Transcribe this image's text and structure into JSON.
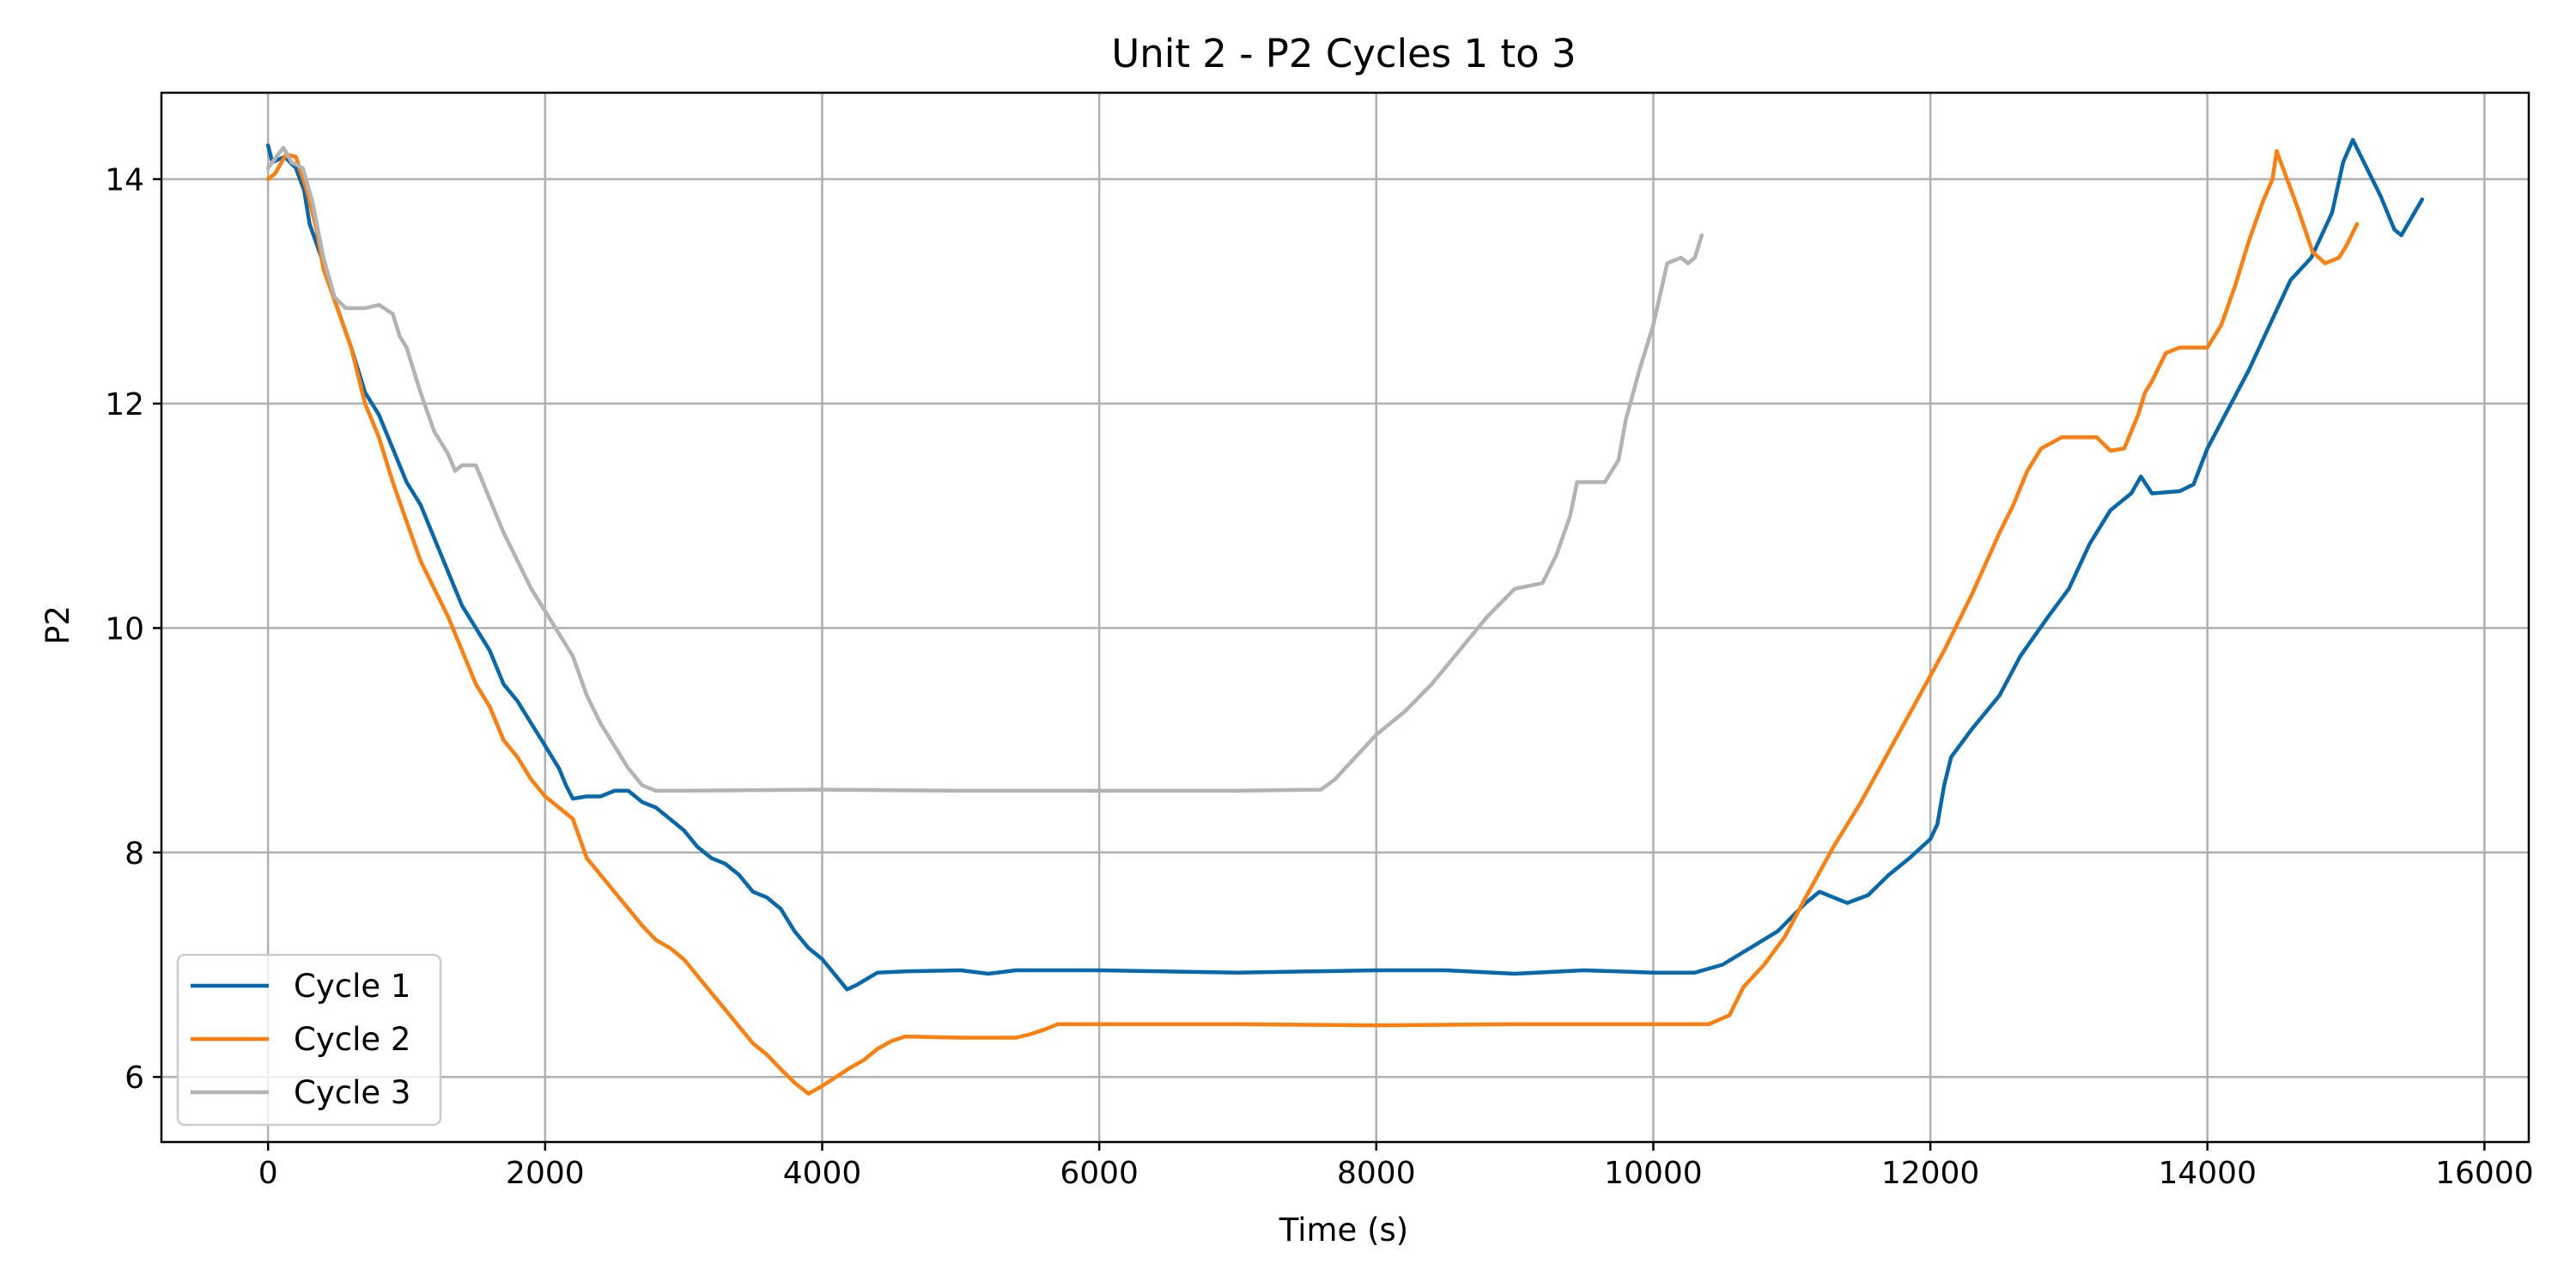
{
  "chart_data": {
    "type": "line",
    "title": "Unit 2 - P2 Cycles 1 to 3",
    "xlabel": "Time (s)",
    "ylabel": "P2",
    "xlim": [
      -770,
      16320
    ],
    "ylim": [
      5.42,
      14.77
    ],
    "xticks": [
      0,
      2000,
      4000,
      6000,
      8000,
      10000,
      12000,
      14000,
      16000
    ],
    "yticks": [
      6,
      8,
      10,
      12,
      14
    ],
    "grid": true,
    "legend_position": "lower-left",
    "series": [
      {
        "name": "Cycle 1",
        "color": "#0868ac",
        "points": [
          [
            0,
            14.3
          ],
          [
            30,
            14.15
          ],
          [
            120,
            14.2
          ],
          [
            200,
            14.1
          ],
          [
            260,
            13.9
          ],
          [
            300,
            13.6
          ],
          [
            400,
            13.25
          ],
          [
            500,
            12.85
          ],
          [
            600,
            12.5
          ],
          [
            700,
            12.1
          ],
          [
            800,
            11.9
          ],
          [
            900,
            11.6
          ],
          [
            1000,
            11.3
          ],
          [
            1100,
            11.1
          ],
          [
            1200,
            10.8
          ],
          [
            1300,
            10.5
          ],
          [
            1400,
            10.2
          ],
          [
            1500,
            10.0
          ],
          [
            1600,
            9.8
          ],
          [
            1700,
            9.5
          ],
          [
            1800,
            9.35
          ],
          [
            1900,
            9.15
          ],
          [
            2000,
            8.95
          ],
          [
            2100,
            8.75
          ],
          [
            2150,
            8.6
          ],
          [
            2200,
            8.48
          ],
          [
            2300,
            8.5
          ],
          [
            2400,
            8.5
          ],
          [
            2500,
            8.55
          ],
          [
            2600,
            8.55
          ],
          [
            2700,
            8.45
          ],
          [
            2800,
            8.4
          ],
          [
            2900,
            8.3
          ],
          [
            3000,
            8.2
          ],
          [
            3100,
            8.05
          ],
          [
            3200,
            7.95
          ],
          [
            3300,
            7.9
          ],
          [
            3400,
            7.8
          ],
          [
            3500,
            7.65
          ],
          [
            3600,
            7.6
          ],
          [
            3700,
            7.5
          ],
          [
            3800,
            7.3
          ],
          [
            3900,
            7.15
          ],
          [
            4000,
            7.05
          ],
          [
            4100,
            6.9
          ],
          [
            4180,
            6.78
          ],
          [
            4250,
            6.82
          ],
          [
            4400,
            6.93
          ],
          [
            4600,
            6.94
          ],
          [
            5000,
            6.95
          ],
          [
            5200,
            6.92
          ],
          [
            5400,
            6.95
          ],
          [
            6000,
            6.95
          ],
          [
            7000,
            6.93
          ],
          [
            8000,
            6.95
          ],
          [
            8500,
            6.95
          ],
          [
            9000,
            6.92
          ],
          [
            9500,
            6.95
          ],
          [
            10000,
            6.93
          ],
          [
            10300,
            6.93
          ],
          [
            10500,
            7.0
          ],
          [
            10700,
            7.15
          ],
          [
            10900,
            7.3
          ],
          [
            11100,
            7.55
          ],
          [
            11200,
            7.65
          ],
          [
            11300,
            7.6
          ],
          [
            11400,
            7.55
          ],
          [
            11550,
            7.62
          ],
          [
            11700,
            7.8
          ],
          [
            11850,
            7.95
          ],
          [
            12000,
            8.12
          ],
          [
            12050,
            8.25
          ],
          [
            12100,
            8.6
          ],
          [
            12150,
            8.85
          ],
          [
            12300,
            9.1
          ],
          [
            12500,
            9.4
          ],
          [
            12650,
            9.75
          ],
          [
            12850,
            10.1
          ],
          [
            13000,
            10.35
          ],
          [
            13150,
            10.75
          ],
          [
            13300,
            11.05
          ],
          [
            13450,
            11.2
          ],
          [
            13520,
            11.35
          ],
          [
            13600,
            11.2
          ],
          [
            13800,
            11.22
          ],
          [
            13900,
            11.28
          ],
          [
            14000,
            11.6
          ],
          [
            14150,
            11.95
          ],
          [
            14300,
            12.3
          ],
          [
            14450,
            12.7
          ],
          [
            14600,
            13.1
          ],
          [
            14750,
            13.3
          ],
          [
            14900,
            13.7
          ],
          [
            14980,
            14.15
          ],
          [
            15050,
            14.35
          ],
          [
            15150,
            14.1
          ],
          [
            15250,
            13.85
          ],
          [
            15350,
            13.55
          ],
          [
            15400,
            13.5
          ],
          [
            15550,
            13.82
          ]
        ]
      },
      {
        "name": "Cycle 2",
        "color": "#ff7f0e",
        "points": [
          [
            0,
            14.0
          ],
          [
            50,
            14.05
          ],
          [
            130,
            14.22
          ],
          [
            200,
            14.2
          ],
          [
            280,
            13.9
          ],
          [
            350,
            13.55
          ],
          [
            400,
            13.2
          ],
          [
            500,
            12.85
          ],
          [
            600,
            12.5
          ],
          [
            700,
            12.0
          ],
          [
            800,
            11.7
          ],
          [
            900,
            11.3
          ],
          [
            1000,
            10.95
          ],
          [
            1100,
            10.6
          ],
          [
            1200,
            10.35
          ],
          [
            1300,
            10.1
          ],
          [
            1400,
            9.8
          ],
          [
            1500,
            9.5
          ],
          [
            1600,
            9.3
          ],
          [
            1700,
            9.0
          ],
          [
            1800,
            8.85
          ],
          [
            1900,
            8.65
          ],
          [
            2000,
            8.5
          ],
          [
            2100,
            8.4
          ],
          [
            2200,
            8.3
          ],
          [
            2300,
            7.95
          ],
          [
            2400,
            7.8
          ],
          [
            2500,
            7.65
          ],
          [
            2600,
            7.5
          ],
          [
            2700,
            7.35
          ],
          [
            2800,
            7.22
          ],
          [
            2900,
            7.15
          ],
          [
            3000,
            7.05
          ],
          [
            3100,
            6.9
          ],
          [
            3200,
            6.75
          ],
          [
            3300,
            6.6
          ],
          [
            3400,
            6.45
          ],
          [
            3500,
            6.3
          ],
          [
            3600,
            6.2
          ],
          [
            3700,
            6.07
          ],
          [
            3800,
            5.95
          ],
          [
            3900,
            5.85
          ],
          [
            4000,
            5.92
          ],
          [
            4100,
            6.0
          ],
          [
            4200,
            6.08
          ],
          [
            4300,
            6.15
          ],
          [
            4400,
            6.25
          ],
          [
            4500,
            6.32
          ],
          [
            4600,
            6.36
          ],
          [
            5000,
            6.35
          ],
          [
            5400,
            6.35
          ],
          [
            5500,
            6.38
          ],
          [
            5600,
            6.42
          ],
          [
            5700,
            6.47
          ],
          [
            6000,
            6.47
          ],
          [
            7000,
            6.47
          ],
          [
            8000,
            6.46
          ],
          [
            9000,
            6.47
          ],
          [
            10000,
            6.47
          ],
          [
            10400,
            6.47
          ],
          [
            10550,
            6.55
          ],
          [
            10650,
            6.8
          ],
          [
            10800,
            7.0
          ],
          [
            10950,
            7.25
          ],
          [
            11100,
            7.6
          ],
          [
            11300,
            8.05
          ],
          [
            11500,
            8.45
          ],
          [
            11700,
            8.9
          ],
          [
            11900,
            9.35
          ],
          [
            12100,
            9.8
          ],
          [
            12300,
            10.3
          ],
          [
            12500,
            10.85
          ],
          [
            12600,
            11.1
          ],
          [
            12700,
            11.4
          ],
          [
            12800,
            11.6
          ],
          [
            12950,
            11.7
          ],
          [
            13200,
            11.7
          ],
          [
            13300,
            11.58
          ],
          [
            13400,
            11.6
          ],
          [
            13500,
            11.9
          ],
          [
            13550,
            12.1
          ],
          [
            13600,
            12.2
          ],
          [
            13700,
            12.45
          ],
          [
            13800,
            12.5
          ],
          [
            14000,
            12.5
          ],
          [
            14100,
            12.7
          ],
          [
            14200,
            13.05
          ],
          [
            14300,
            13.45
          ],
          [
            14400,
            13.8
          ],
          [
            14470,
            14.0
          ],
          [
            14500,
            14.25
          ],
          [
            14560,
            14.05
          ],
          [
            14650,
            13.75
          ],
          [
            14760,
            13.35
          ],
          [
            14850,
            13.25
          ],
          [
            14950,
            13.3
          ],
          [
            15000,
            13.4
          ],
          [
            15080,
            13.6
          ]
        ]
      },
      {
        "name": "Cycle 3",
        "color": "#b3b3b3",
        "points": [
          [
            0,
            14.1
          ],
          [
            60,
            14.2
          ],
          [
            110,
            14.28
          ],
          [
            170,
            14.15
          ],
          [
            250,
            14.1
          ],
          [
            320,
            13.8
          ],
          [
            400,
            13.3
          ],
          [
            480,
            12.95
          ],
          [
            560,
            12.85
          ],
          [
            700,
            12.85
          ],
          [
            800,
            12.88
          ],
          [
            900,
            12.8
          ],
          [
            950,
            12.6
          ],
          [
            1000,
            12.5
          ],
          [
            1100,
            12.1
          ],
          [
            1200,
            11.75
          ],
          [
            1300,
            11.55
          ],
          [
            1350,
            11.4
          ],
          [
            1400,
            11.45
          ],
          [
            1500,
            11.45
          ],
          [
            1600,
            11.15
          ],
          [
            1700,
            10.85
          ],
          [
            1800,
            10.6
          ],
          [
            1900,
            10.35
          ],
          [
            2000,
            10.15
          ],
          [
            2100,
            9.95
          ],
          [
            2200,
            9.75
          ],
          [
            2300,
            9.4
          ],
          [
            2400,
            9.15
          ],
          [
            2500,
            8.95
          ],
          [
            2600,
            8.75
          ],
          [
            2700,
            8.6
          ],
          [
            2800,
            8.55
          ],
          [
            3000,
            8.55
          ],
          [
            4000,
            8.56
          ],
          [
            5000,
            8.55
          ],
          [
            6000,
            8.55
          ],
          [
            7000,
            8.55
          ],
          [
            7600,
            8.56
          ],
          [
            7700,
            8.65
          ],
          [
            7850,
            8.85
          ],
          [
            8000,
            9.05
          ],
          [
            8200,
            9.25
          ],
          [
            8400,
            9.5
          ],
          [
            8600,
            9.8
          ],
          [
            8800,
            10.1
          ],
          [
            9000,
            10.35
          ],
          [
            9200,
            10.4
          ],
          [
            9300,
            10.65
          ],
          [
            9400,
            11.0
          ],
          [
            9450,
            11.3
          ],
          [
            9550,
            11.3
          ],
          [
            9650,
            11.3
          ],
          [
            9750,
            11.5
          ],
          [
            9800,
            11.85
          ],
          [
            9900,
            12.3
          ],
          [
            10000,
            12.7
          ],
          [
            10100,
            13.25
          ],
          [
            10200,
            13.3
          ],
          [
            10250,
            13.25
          ],
          [
            10300,
            13.3
          ],
          [
            10350,
            13.5
          ]
        ]
      }
    ]
  }
}
